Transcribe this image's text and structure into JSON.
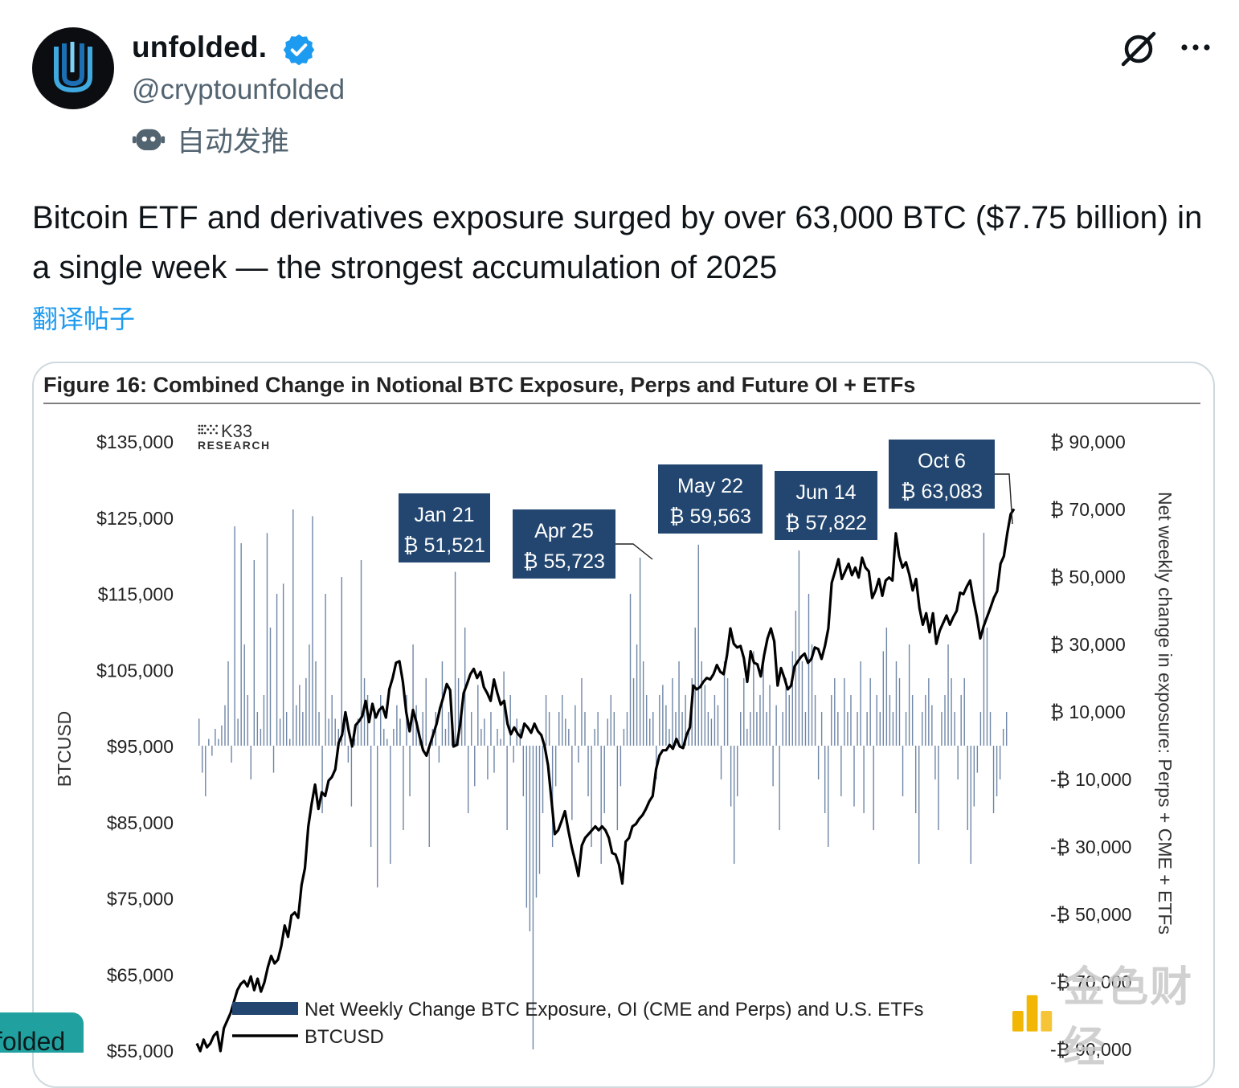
{
  "author": {
    "name": "unfolded.",
    "handle": "@cryptounfolded",
    "automated_label": "自动发推"
  },
  "tweet": {
    "text": "Bitcoin ETF and derivatives exposure surged by over 63,000 BTC ($7.75 billion) in a single week — the strongest accumulation of 2025",
    "translate_label": "翻译帖子"
  },
  "icons": {
    "verified": "verified-badge-icon",
    "bot": "robot-icon",
    "grok": "grok-icon",
    "more": "more-options-icon"
  },
  "colors": {
    "link": "#1d9bf0",
    "verified": "#1d9bf0",
    "bar": "#6f86a6",
    "line": "#000000",
    "callout": "#22466f"
  },
  "watermarks": {
    "left_text": "folded",
    "right_text": "金色财经"
  },
  "chart_data": {
    "type": "bar",
    "title": "Figure 16: Combined Change in Notional BTC Exposure, Perps and Future OI + ETFs",
    "brand": {
      "top": "K33",
      "bottom": "RESEARCH"
    },
    "ylabel": "BTCUSD",
    "y2label": "Net weekly change in exposure: Perps + CME + ETFs",
    "yticks": [
      "$135,000",
      "$125,000",
      "$115,000",
      "$105,000",
      "$95,000",
      "$85,000",
      "$75,000",
      "$65,000",
      "$55,000"
    ],
    "ylim": [
      55000,
      135000
    ],
    "y2ticks": [
      "₿ 90,000",
      "₿ 70,000",
      "₿ 50,000",
      "₿ 30,000",
      "₿ 10,000",
      "-₿ 10,000",
      "-₿ 30,000",
      "-₿ 50,000",
      "-₿ 70,000",
      "-₿ 90,000"
    ],
    "y2lim": [
      -90000,
      90000
    ],
    "legend": [
      {
        "kind": "bar",
        "label": "Net Weekly Change BTC Exposure, OI (CME and Perps) and U.S. ETFs"
      },
      {
        "kind": "line",
        "label": "BTCUSD"
      }
    ],
    "callouts": [
      {
        "date": "Jan 21",
        "value": "₿ 51,521"
      },
      {
        "date": "Apr 25",
        "value": "₿ 55,723"
      },
      {
        "date": "May 22",
        "value": "₿ 59,563"
      },
      {
        "date": "Jun 14",
        "value": "₿ 57,822"
      },
      {
        "date": "Oct 6",
        "value": "₿ 63,083"
      }
    ],
    "series": [
      {
        "name": "Net Weekly Change BTC Exposure, OI (CME and Perps) and U.S. ETFs",
        "values": [
          8000,
          -8000,
          -15000,
          2000,
          -3000,
          5000,
          2000,
          6000,
          12000,
          25000,
          -5000,
          65000,
          8000,
          60000,
          30000,
          15000,
          -10000,
          55000,
          10000,
          5000,
          15000,
          63000,
          35000,
          -8000,
          45000,
          8000,
          48000,
          10000,
          2000,
          70000,
          12000,
          18000,
          10000,
          20000,
          30000,
          68000,
          25000,
          10000,
          -20000,
          45000,
          8000,
          15000,
          8000,
          5000,
          50000,
          10000,
          -5000,
          -18000,
          2000,
          8000,
          55000,
          20000,
          15000,
          -30000,
          10000,
          -42000,
          15000,
          5000,
          2000,
          -35000,
          5000,
          12000,
          8000,
          -25000,
          15000,
          -15000,
          30000,
          12000,
          2000,
          10000,
          20000,
          -30000,
          5000,
          10000,
          -5000,
          25000,
          5000,
          10000,
          8000,
          51521,
          20000,
          10000,
          35000,
          -20000,
          10000,
          -12000,
          18000,
          5000,
          8000,
          -10000,
          10000,
          -8000,
          5000,
          2000,
          22000,
          -25000,
          15000,
          -5000,
          8000,
          5000,
          -15000,
          -48000,
          -55000,
          -90000,
          -45000,
          -38000,
          -20000,
          15000,
          10000,
          -30000,
          -12000,
          10000,
          15000,
          8000,
          5000,
          -22000,
          12000,
          -5000,
          20000,
          10000,
          -15000,
          -30000,
          5000,
          10000,
          -35000,
          -20000,
          8000,
          15000,
          10000,
          -25000,
          -12000,
          5000,
          10000,
          45000,
          20000,
          30000,
          55723,
          25000,
          15000,
          8000,
          10000,
          -10000,
          15000,
          18000,
          12000,
          5000,
          20000,
          10000,
          25000,
          10000,
          15000,
          5000,
          20000,
          35000,
          59563,
          25000,
          18000,
          10000,
          8000,
          15000,
          12000,
          -10000,
          25000,
          20000,
          -18000,
          -35000,
          -15000,
          10000,
          20000,
          5000,
          10000,
          28000,
          10000,
          15000,
          25000,
          10000,
          18000,
          -12000,
          12000,
          -25000,
          10000,
          20000,
          15000,
          28000,
          40000,
          57822,
          25000,
          10000,
          45000,
          30000,
          15000,
          -10000,
          10000,
          -20000,
          -30000,
          15000,
          20000,
          10000,
          -15000,
          20000,
          10000,
          15000,
          -18000,
          10000,
          25000,
          -20000,
          10000,
          20000,
          -25000,
          15000,
          10000,
          28000,
          35000,
          15000,
          10000,
          25000,
          20000,
          -15000,
          10000,
          30000,
          15000,
          -20000,
          -35000,
          10000,
          15000,
          20000,
          12000,
          -10000,
          -25000,
          10000,
          15000,
          30000,
          20000,
          10000,
          -10000,
          15000,
          20000,
          -25000,
          -35000,
          -18000,
          -8000,
          10000,
          63083,
          35000,
          10000,
          -20000,
          -15000,
          -10000,
          5000,
          10000
        ]
      },
      {
        "name": "BTCUSD",
        "values": [
          56000,
          55000,
          56500,
          55500,
          56000,
          57000,
          57500,
          55000,
          58000,
          59000,
          60000,
          61500,
          63000,
          63800,
          64200,
          63500,
          64800,
          63000,
          64500,
          62800,
          64000,
          66000,
          67500,
          66500,
          67000,
          68800,
          71500,
          70000,
          72800,
          73200,
          72500,
          76800,
          79000,
          84500,
          87500,
          90000,
          86800,
          89000,
          88500,
          90500,
          91000,
          92000,
          95500,
          96500,
          99500,
          97000,
          95000,
          97800,
          98300,
          99000,
          101000,
          98200,
          100600,
          98800,
          99800,
          100200,
          98800,
          102500,
          104000,
          106000,
          106200,
          103500,
          99500,
          97000,
          99800,
          98200,
          96200,
          94500,
          93800,
          95200,
          96600,
          98000,
          100000,
          101500,
          103200,
          102400,
          95000,
          95200,
          98000,
          102000,
          103200,
          104500,
          105200,
          104000,
          104800,
          102800,
          102000,
          101000,
          103800,
          102000,
          100500,
          101000,
          98000,
          96600,
          97500,
          96700,
          96200,
          98000,
          97500,
          96800,
          98000,
          97000,
          96500,
          95000,
          92500,
          88000,
          83500,
          84000,
          85200,
          86500,
          84000,
          81800,
          80000,
          78000,
          82000,
          83000,
          83500,
          84000,
          84500,
          84000,
          84500,
          84000,
          83000,
          81000,
          80800,
          79500,
          77000,
          82500,
          83000,
          84500,
          84800,
          85500,
          86000,
          86800,
          87800,
          88500,
          92000,
          93800,
          94500,
          94500,
          95200,
          94700,
          96000,
          95000,
          94800,
          96500,
          97500,
          103000,
          102500,
          102800,
          103500,
          104000,
          103800,
          104500,
          105700,
          104800,
          104500,
          107000,
          110500,
          108500,
          108000,
          108200,
          106600,
          103500,
          107500,
          106000,
          105800,
          104200,
          107000,
          109200,
          110500,
          108800,
          103000,
          105300,
          104000,
          102500,
          103000,
          105500,
          106200,
          106800,
          107200,
          106000,
          106500,
          108000,
          107800,
          106500,
          108200,
          110500,
          116500,
          118000,
          119600,
          117000,
          118000,
          119000,
          117500,
          118500,
          117200,
          119800,
          118500,
          118000,
          114500,
          115500,
          117000,
          114800,
          116800,
          117200,
          116800,
          123000,
          120000,
          118500,
          119200,
          117600,
          115500,
          117000,
          113200,
          111000,
          112500,
          110000,
          112500,
          108500,
          110200,
          111200,
          112200,
          111000,
          112000,
          112800,
          115200,
          115000,
          116000,
          116800,
          114200,
          112000,
          109200,
          110800,
          112000,
          113200,
          114500,
          115400,
          119000,
          120000,
          123000,
          125500,
          126200
        ]
      }
    ]
  }
}
